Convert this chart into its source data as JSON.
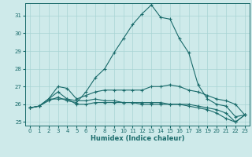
{
  "xlabel": "Humidex (Indice chaleur)",
  "ylabel": "",
  "bg_color": "#ceeaea",
  "grid_color": "#a8d4d4",
  "line_color": "#1a6b6b",
  "xlim": [
    -0.5,
    23.5
  ],
  "ylim": [
    24.8,
    31.7
  ],
  "yticks": [
    25,
    26,
    27,
    28,
    29,
    30,
    31
  ],
  "xticks": [
    0,
    1,
    2,
    3,
    4,
    5,
    6,
    7,
    8,
    9,
    10,
    11,
    12,
    13,
    14,
    15,
    16,
    17,
    18,
    19,
    20,
    21,
    22,
    23
  ],
  "series": [
    [
      25.8,
      25.9,
      26.2,
      26.4,
      26.2,
      26.1,
      26.7,
      27.5,
      28.0,
      28.9,
      29.7,
      30.5,
      31.1,
      31.6,
      30.9,
      30.8,
      29.7,
      28.9,
      27.1,
      26.3,
      26.0,
      25.9,
      25.3,
      25.4
    ],
    [
      25.8,
      25.9,
      26.3,
      27.0,
      26.9,
      26.3,
      26.5,
      26.7,
      26.8,
      26.8,
      26.8,
      26.8,
      26.8,
      27.0,
      27.0,
      27.1,
      27.0,
      26.8,
      26.7,
      26.5,
      26.3,
      26.2,
      26.0,
      25.4
    ],
    [
      25.8,
      25.9,
      26.3,
      26.7,
      26.3,
      26.2,
      26.2,
      26.3,
      26.2,
      26.2,
      26.1,
      26.1,
      26.1,
      26.1,
      26.1,
      26.0,
      26.0,
      26.0,
      25.9,
      25.8,
      25.7,
      25.5,
      25.0,
      25.4
    ],
    [
      25.8,
      25.9,
      26.3,
      26.3,
      26.3,
      26.0,
      26.0,
      26.1,
      26.1,
      26.1,
      26.1,
      26.1,
      26.0,
      26.0,
      26.0,
      26.0,
      26.0,
      25.9,
      25.8,
      25.7,
      25.5,
      25.2,
      25.0,
      25.4
    ]
  ]
}
